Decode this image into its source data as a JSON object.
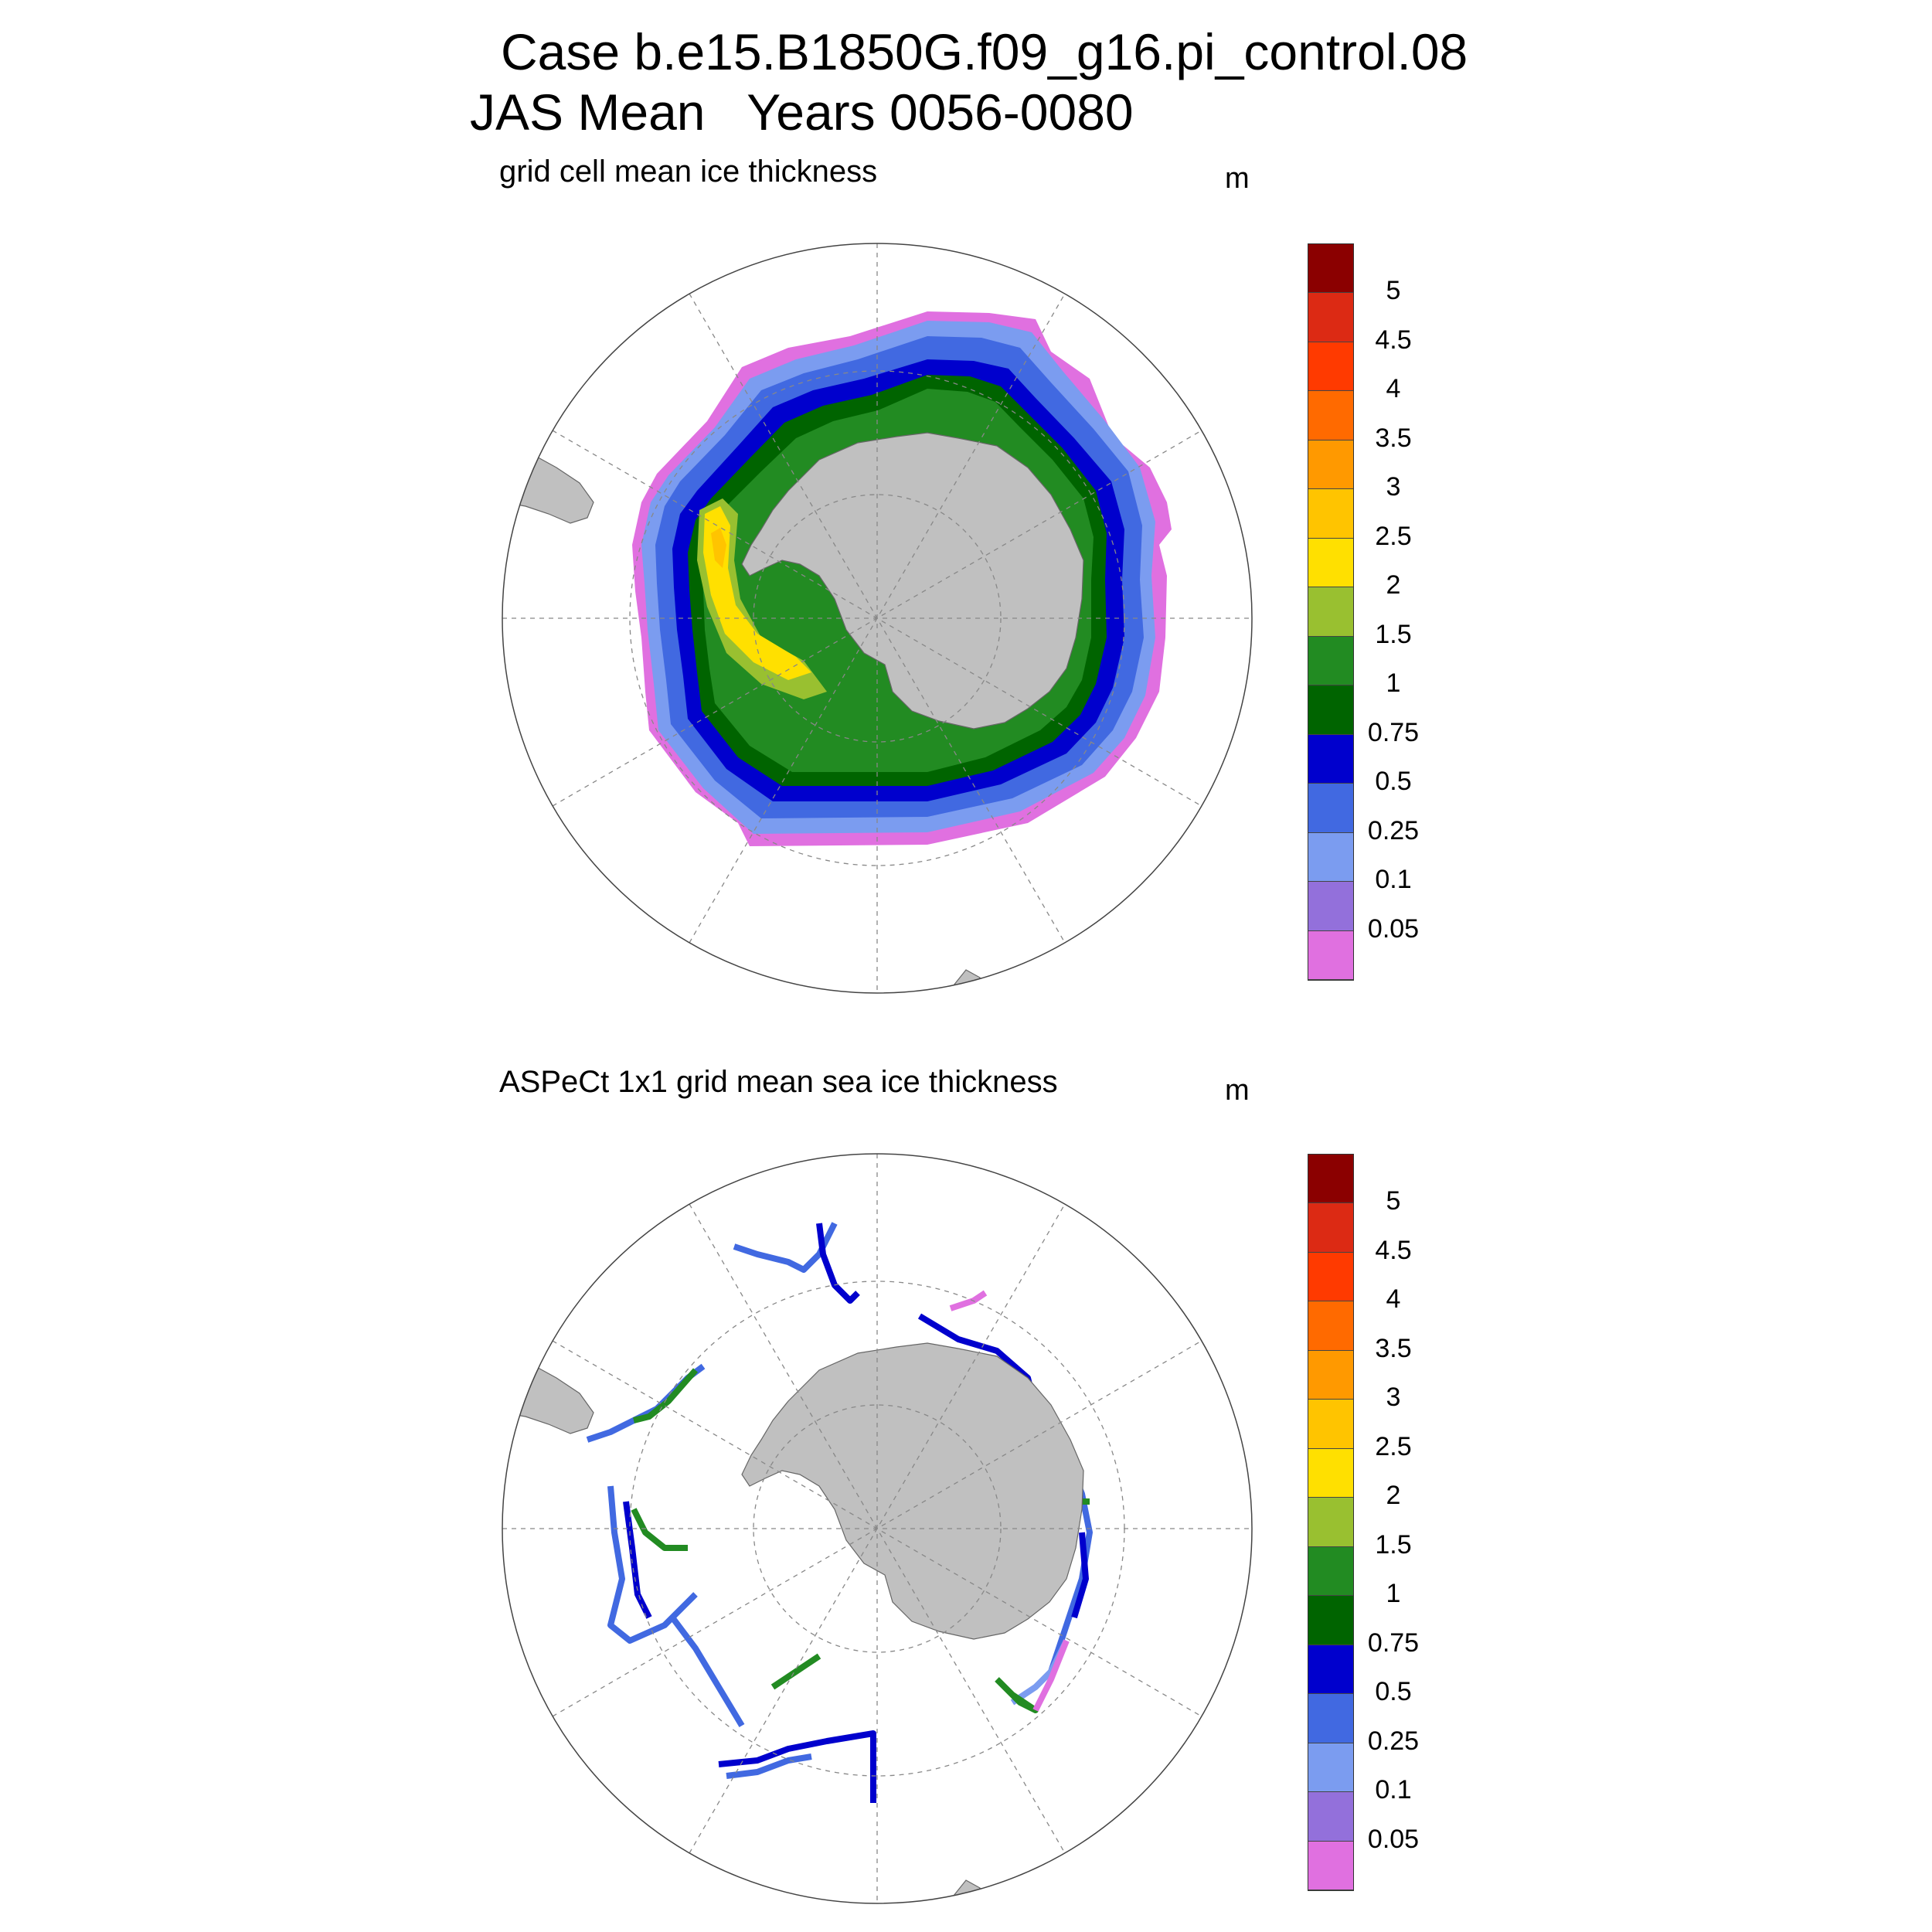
{
  "header": {
    "title_line1": "Case b.e15.B1850G.f09_g16.pi_control.08",
    "title_line2": "JAS Mean   Years 0056-0080"
  },
  "panels": [
    {
      "title": "grid cell mean ice thickness",
      "units": "m"
    },
    {
      "title": "ASPeCt 1x1 grid mean sea ice thickness",
      "units": "m"
    }
  ],
  "colorbar": {
    "labels": [
      "5",
      "4.5",
      "4",
      "3.5",
      "3",
      "2.5",
      "2",
      "1.5",
      "1",
      "0.75",
      "0.5",
      "0.25",
      "0.1",
      "0.05"
    ],
    "colors": [
      "#8b0000",
      "#dc2a14",
      "#ff3a00",
      "#ff6a00",
      "#ff9900",
      "#ffc400",
      "#ffe000",
      "#99c030",
      "#228b22",
      "#006400",
      "#0000cd",
      "#4169e1",
      "#7b9cf0",
      "#9370db",
      "#e070e0"
    ]
  },
  "colors": {
    "land": "#c0c0c0",
    "grid": "#888888"
  }
}
